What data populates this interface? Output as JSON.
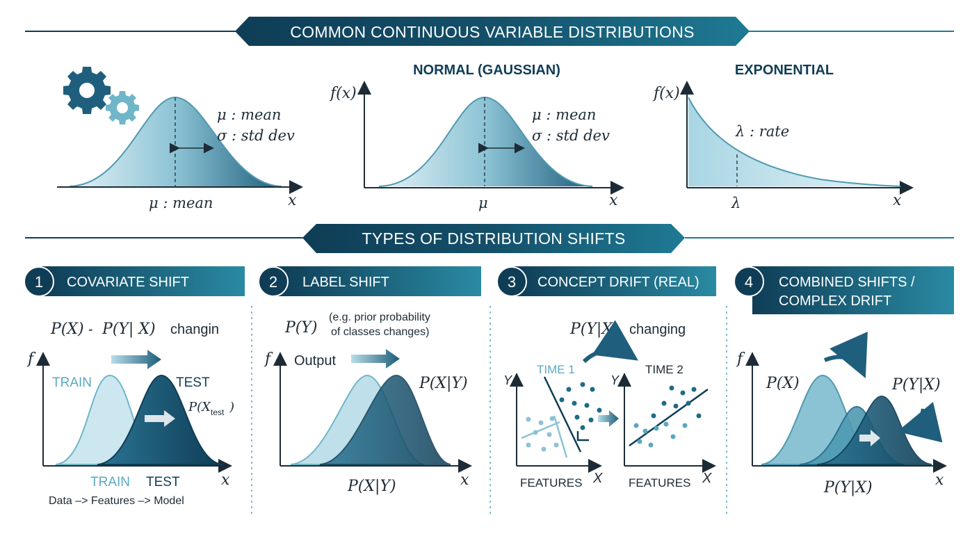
{
  "section_top": {
    "title": "COMMON CONTINUOUS VARIABLE DISTRIBUTIONS",
    "panel1": {
      "mu_label": "μ : mean",
      "sigma_label": "σ : std dev",
      "axis_mu": "μ : mean",
      "axis_x": "x"
    },
    "panel2": {
      "title": "NORMAL (GAUSSIAN)",
      "yaxis": "f(x)",
      "mu_label": "μ : mean",
      "sigma_label": "σ : std dev",
      "axis_mu": "μ",
      "axis_x": "x"
    },
    "panel3": {
      "title": "EXPONENTIAL",
      "yaxis": "f(x)",
      "lambda_label": "λ : rate",
      "axis_lambda": "λ",
      "axis_x": "x"
    }
  },
  "section_bottom": {
    "title": "TYPES OF DISTRIBUTION SHIFTS",
    "cards": [
      {
        "num": "1",
        "title": "COVARIATE SHIFT"
      },
      {
        "num": "2",
        "title": "LABEL SHIFT"
      },
      {
        "num": "3",
        "title": "CONCEPT DRIFT (REAL)"
      },
      {
        "num": "4",
        "title_line1": "COMBINED SHIFTS /",
        "title_line2": "COMPLEX DRIFT"
      }
    ],
    "covariate": {
      "formula_a": "P(X)",
      "formula_sep": "-",
      "formula_b": "P(Y| X)",
      "formula_c": "changin",
      "yaxis": "f",
      "train_top": "TRAIN",
      "test_top": "TEST",
      "p_test": "P(X",
      "p_test_sub": "test",
      "p_test_close": ")",
      "train_bottom": "TRAIN",
      "test_bottom": "TEST",
      "axis_x": "x",
      "pipeline": "Data –> Features –> Model"
    },
    "label_shift": {
      "formula": "P(Y)",
      "note_line1": "(e.g. prior probability",
      "note_line2": "of classes changes)",
      "yaxis": "f",
      "output": "Output",
      "pxy_right": "P(X|Y)",
      "pxy_bottom": "P(X|Y)",
      "axis_x": "x"
    },
    "concept_drift": {
      "formula": "P(Y|X)",
      "formula_suffix": "changing",
      "time1": "TIME 1",
      "time2": "TIME 2",
      "yaxis1": "Y",
      "yaxis2": "Y",
      "features1": "FEATURES",
      "features2": "FEATURES",
      "axis_x1": "X",
      "axis_x2": "X"
    },
    "combined": {
      "yaxis": "f",
      "px": "P(X)",
      "pyx_right": "P(Y|X)",
      "pyx_bottom": "P(Y|X)",
      "axis_x": "x"
    }
  },
  "colors": {
    "dark": "#0f3d56",
    "teal": "#1f7a94",
    "light": "#cfe8f0",
    "accent": "#5aa9bf"
  }
}
